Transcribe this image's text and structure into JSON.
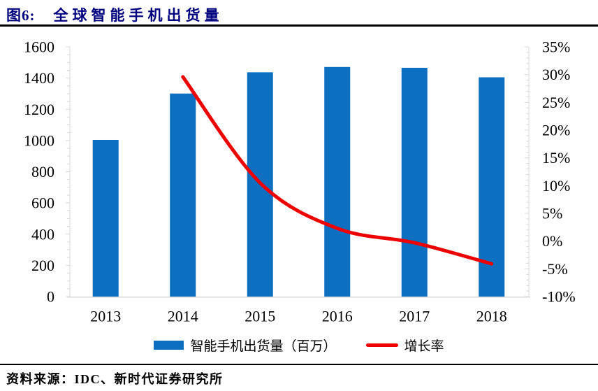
{
  "header": {
    "tag": "图6:",
    "title": "全球智能手机出货量"
  },
  "source": "资料来源：IDC、新时代证券研究所",
  "colors": {
    "bar": "#0D6FC0",
    "line": "#EC0000",
    "title": "#00007F",
    "axis": "#D9D9D9",
    "text": "#000000",
    "rule": "#000000"
  },
  "chart_data": {
    "type": "bar",
    "title": "全球智能手机出货量",
    "categories": [
      "2013",
      "2014",
      "2015",
      "2016",
      "2017",
      "2018"
    ],
    "series": [
      {
        "name": "智能手机出货量（百万）",
        "type": "bar",
        "yaxis": "left",
        "values": [
          1004,
          1301,
          1437,
          1471,
          1466,
          1405
        ]
      },
      {
        "name": "增长率",
        "type": "line",
        "yaxis": "right",
        "values": [
          null,
          29.6,
          10.5,
          2.3,
          -0.3,
          -4.1
        ]
      }
    ],
    "left_axis": {
      "min": 0,
      "max": 1600,
      "step": 200,
      "minor_step": 50,
      "labels": [
        "0",
        "200",
        "400",
        "600",
        "800",
        "1000",
        "1200",
        "1400",
        "1600"
      ]
    },
    "right_axis": {
      "min": -10,
      "max": 35,
      "step": 5,
      "minor_step": 1,
      "labels": [
        "-10%",
        "-5%",
        "0%",
        "5%",
        "10%",
        "15%",
        "20%",
        "25%",
        "30%",
        "35%"
      ]
    },
    "legend": [
      {
        "label": "智能手机出货量（百万）",
        "swatch": "bar"
      },
      {
        "label": "增长率",
        "swatch": "line"
      }
    ],
    "grid": false,
    "legend_position": "bottom"
  }
}
